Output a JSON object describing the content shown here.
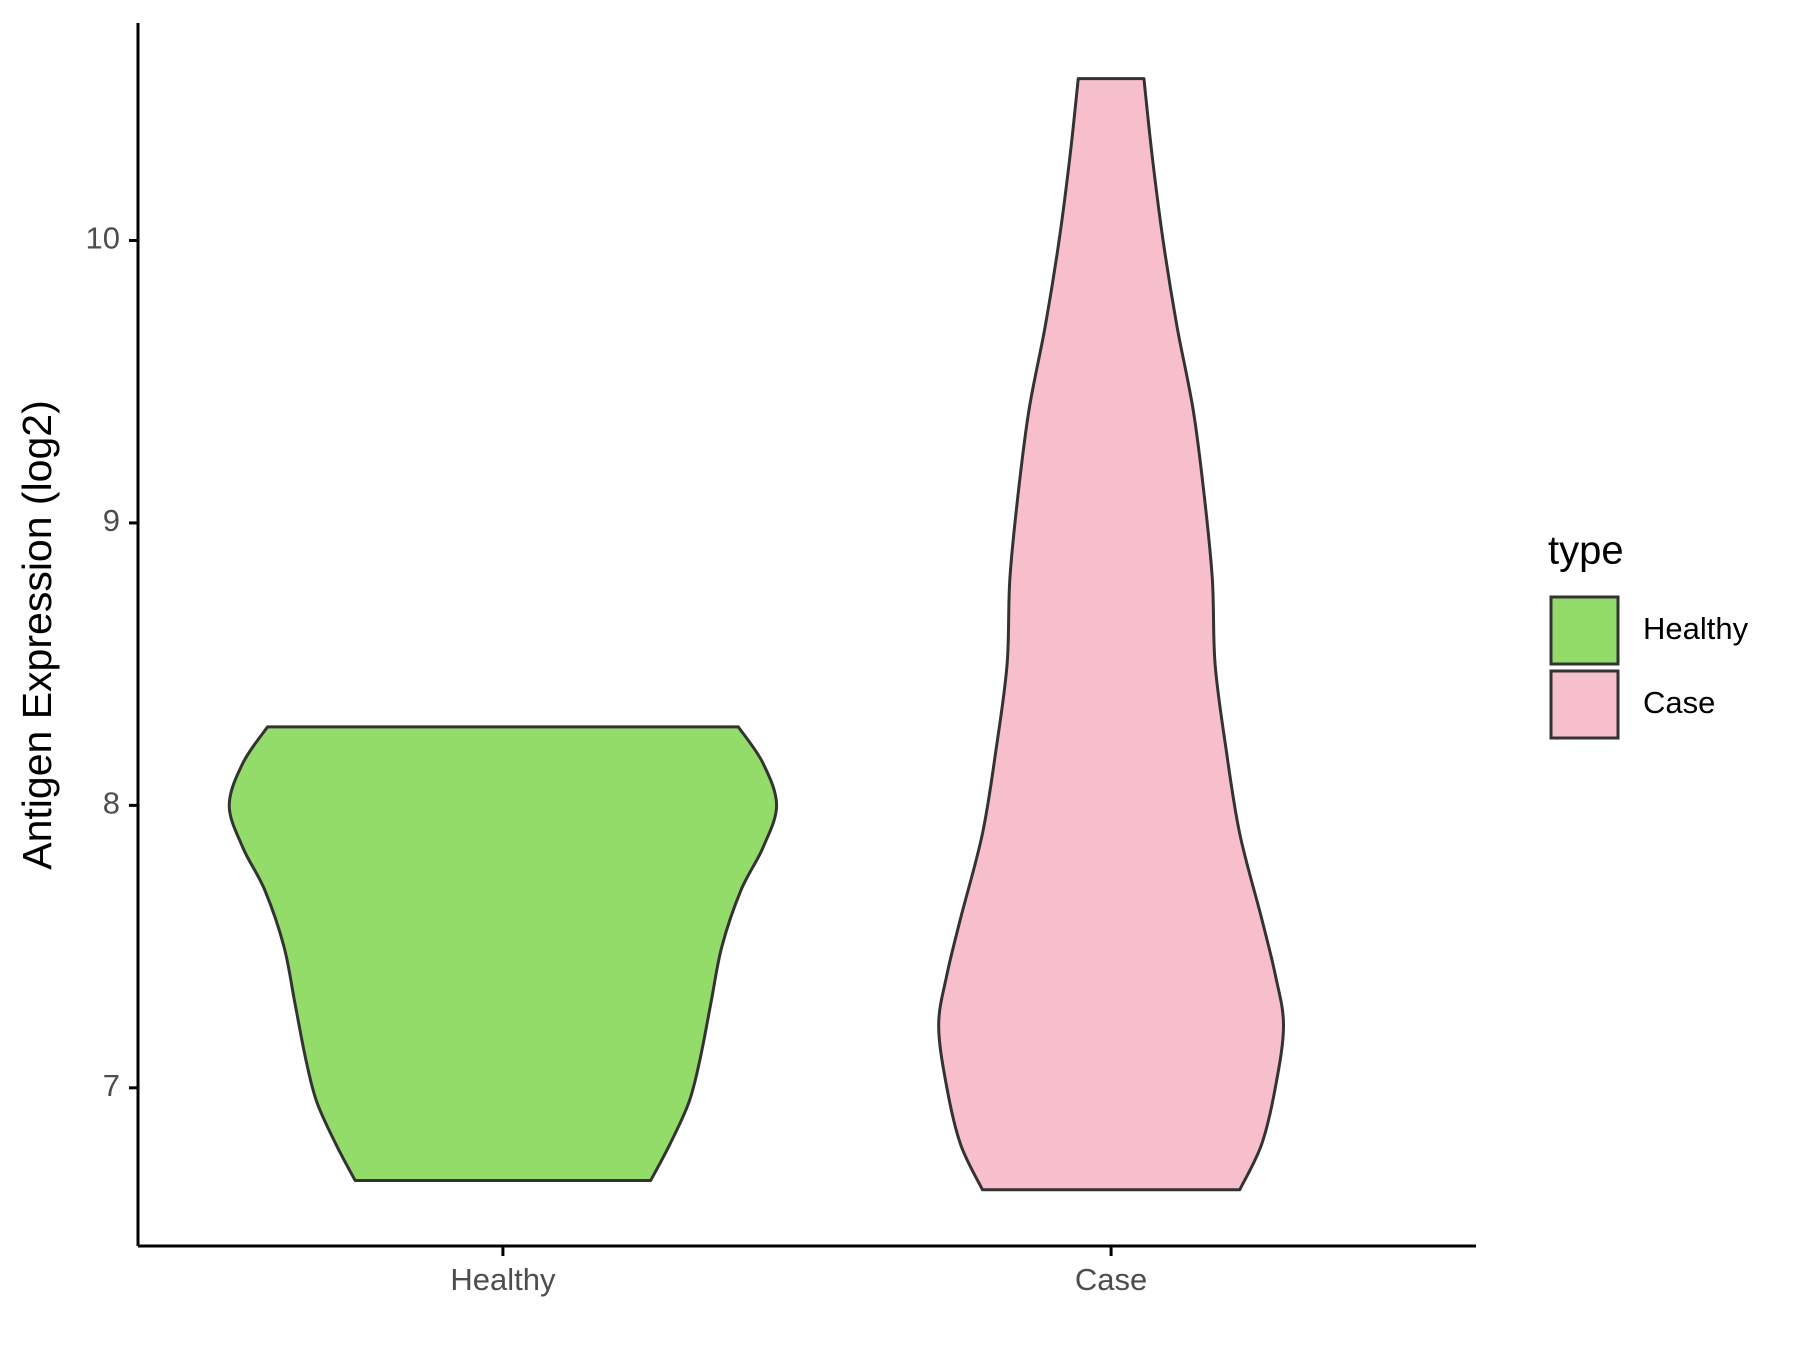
{
  "chart_data": {
    "type": "violin",
    "y_label": "Antigen Expression (log2)",
    "categories": [
      "Healthy",
      "Case"
    ],
    "series": [
      {
        "name": "Healthy",
        "color": "#93dc6a",
        "y": [
          6.672,
          6.8,
          6.95,
          7.1,
          7.3,
          7.5,
          7.7,
          7.85,
          8.0,
          8.15,
          8.278
        ],
        "density": [
          0.54,
          0.61,
          0.68,
          0.72,
          0.76,
          0.8,
          0.87,
          0.95,
          1.0,
          0.95,
          0.86
        ]
      },
      {
        "name": "Case",
        "color": "#f7bfcb",
        "y": [
          6.639,
          6.8,
          7.0,
          7.22,
          7.4,
          7.6,
          7.9,
          8.2,
          8.5,
          8.8,
          9.1,
          9.4,
          9.7,
          10.0,
          10.3,
          10.573
        ],
        "density": [
          0.47,
          0.55,
          0.6,
          0.63,
          0.6,
          0.55,
          0.47,
          0.42,
          0.38,
          0.37,
          0.34,
          0.3,
          0.24,
          0.19,
          0.15,
          0.12
        ]
      }
    ],
    "ylim": [
      6.44,
      10.77
    ],
    "yticks": [
      7,
      8,
      9,
      10
    ],
    "legend_title": "type",
    "legend": "right"
  }
}
